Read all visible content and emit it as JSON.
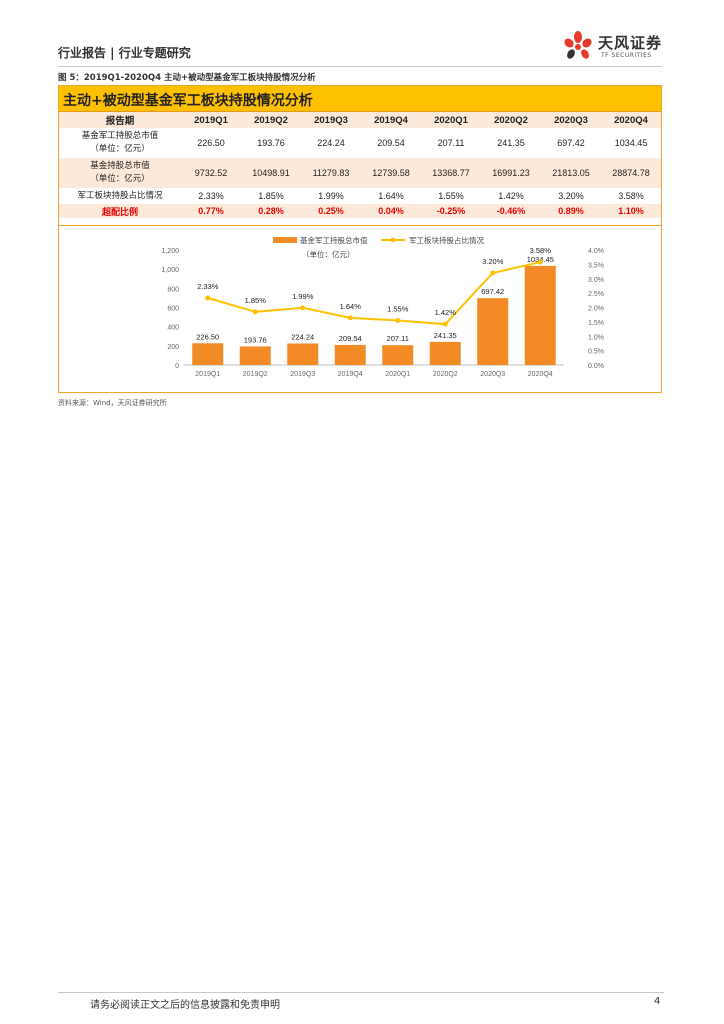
{
  "header": {
    "title": "行业报告 | 行业专题研究",
    "logo_cn": "天风证券",
    "logo_en": "TF SECURITIES"
  },
  "figure": {
    "caption": "图 5：2019Q1-2020Q4 主动+被动型基金军工板块持股情况分析",
    "table_title": "主动+被动型基金军工板块持股情况分析",
    "table": {
      "header_label": "报告期",
      "periods": [
        "2019Q1",
        "2019Q2",
        "2019Q3",
        "2019Q4",
        "2020Q1",
        "2020Q2",
        "2020Q3",
        "2020Q4"
      ],
      "rows": [
        {
          "label_line1": "基金军工持股总市值",
          "label_line2": "（单位：亿元）",
          "values": [
            "226.50",
            "193.76",
            "224.24",
            "209.54",
            "207.11",
            "241.35",
            "697.42",
            "1034.45"
          ]
        },
        {
          "label_line1": "基金持股总市值",
          "label_line2": "（单位：亿元）",
          "values": [
            "9732.52",
            "10498.91",
            "11279.83",
            "12739.58",
            "13368.77",
            "16991.23",
            "21813.05",
            "28874.78"
          ]
        },
        {
          "label_line1": "军工板块持股占比情况",
          "label_line2": "",
          "values": [
            "2.33%",
            "1.85%",
            "1.99%",
            "1.64%",
            "1.55%",
            "1.42%",
            "3.20%",
            "3.58%"
          ]
        },
        {
          "label_line1": "超配比例",
          "label_line2": "",
          "values": [
            "0.77%",
            "0.28%",
            "0.25%",
            "0.04%",
            "-0.25%",
            "-0.46%",
            "0.89%",
            "1.10%"
          ]
        }
      ]
    }
  },
  "chart_data": {
    "type": "bar",
    "categories": [
      "2019Q1",
      "2019Q2",
      "2019Q3",
      "2019Q4",
      "2020Q1",
      "2020Q2",
      "2020Q3",
      "2020Q4"
    ],
    "series": [
      {
        "name": "基金军工持股总市值",
        "type": "bar",
        "axis": "left",
        "color": "#f28a26",
        "values": [
          226.5,
          193.76,
          224.24,
          209.54,
          207.11,
          241.35,
          697.42,
          1034.45
        ],
        "labels": [
          "226.50",
          "193.76",
          "224.24",
          "209.54",
          "207.11",
          "241.35",
          "697.42",
          "1034.45"
        ]
      },
      {
        "name": "军工板块持股占比情况",
        "type": "line",
        "axis": "right",
        "color": "#ffc000",
        "values": [
          2.33,
          1.85,
          1.99,
          1.64,
          1.55,
          1.42,
          3.2,
          3.58
        ],
        "labels": [
          "2.33%",
          "1.85%",
          "1.99%",
          "1.64%",
          "1.55%",
          "1.42%",
          "3.20%",
          "3.58%"
        ]
      }
    ],
    "unit_note": "（单位：亿元）",
    "ylim": [
      0,
      1200
    ],
    "yticks": [
      "0",
      "200",
      "400",
      "600",
      "800",
      "1,000",
      "1,200"
    ],
    "y2lim": [
      0,
      4.0
    ],
    "y2ticks": [
      "0.0%",
      "0.5%",
      "1.0%",
      "1.5%",
      "2.0%",
      "2.5%",
      "3.0%",
      "3.5%",
      "4.0%"
    ],
    "legend_position": "top",
    "grid": false
  },
  "source": "资料来源：Wind，天风证券研究所",
  "footer": {
    "disclaimer": "请务必阅读正文之后的信息披露和免责申明",
    "page": "4"
  }
}
